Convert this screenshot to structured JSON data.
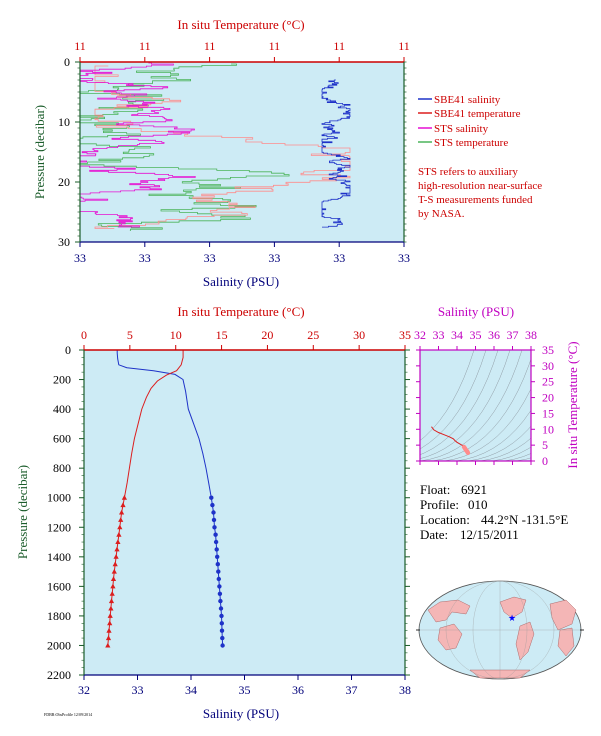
{
  "colors": {
    "plot_bg": "#cdebf5",
    "salinity": "#1e32c8",
    "temperature": "#dc1e1e",
    "sts_salinity": "#e60fd2",
    "sts_temperature": "#4bb45a",
    "sts_temperature_alt": "#ff8c8c",
    "axis_red": "#cc0000",
    "axis_blue": "#00007a",
    "axis_green": "#1a5c2a",
    "axis_magenta": "#c000c0"
  },
  "top_panel": {
    "title": "In situ Temperature (°C)",
    "temp_tick_labels": [
      "11",
      "11",
      "11",
      "11",
      "11",
      "11"
    ],
    "sal_tick_labels": [
      "33",
      "33",
      "33",
      "33",
      "33",
      "33"
    ],
    "xlabel": "Salinity (PSU)",
    "ylabel": "Pressure (decibar)",
    "y_tick_labels": [
      "0",
      "10",
      "20",
      "30"
    ],
    "legend": [
      {
        "label": "SBE41 salinity",
        "color": "#1e32c8"
      },
      {
        "label": "SBE41 temperature",
        "color": "#dc1e1e"
      },
      {
        "label": "STS salinity",
        "color": "#e60fd2"
      },
      {
        "label": "STS temperature",
        "color": "#4bb45a"
      }
    ],
    "note": [
      "STS refers to auxiliary",
      "high-resolution near-surface",
      "T-S measurements funded",
      "by NASA."
    ]
  },
  "main_panel": {
    "title": "In situ Temperature (°C)",
    "xlabel": "Salinity (PSU)",
    "ylabel": "Pressure (decibar)",
    "temp_tick_labels": [
      "0",
      "5",
      "10",
      "15",
      "20",
      "25",
      "30",
      "35"
    ],
    "sal_tick_labels": [
      "32",
      "33",
      "34",
      "35",
      "36",
      "37",
      "38"
    ],
    "y_tick_labels": [
      "0",
      "200",
      "400",
      "600",
      "800",
      "1000",
      "1200",
      "1400",
      "1600",
      "1800",
      "2000",
      "2200"
    ]
  },
  "ts_panel": {
    "title": "Salinity (PSU)",
    "ylabel": "In situ Temperature (°C)",
    "x_tick_labels": [
      "32",
      "33",
      "34",
      "35",
      "36",
      "37",
      "38"
    ],
    "y_tick_labels": [
      "0",
      "5",
      "10",
      "15",
      "20",
      "25",
      "30",
      "35"
    ]
  },
  "info": {
    "float_label": "Float:",
    "float_value": "6921",
    "profile_label": "Profile:",
    "profile_value": "010",
    "location_label": "Location:",
    "location_value": "44.2°N  -131.5°E",
    "date_label": "Date:",
    "date_value": "12/15/2011"
  },
  "footer_text": "FDBR:ObsProfile 12/09/2014",
  "chart_data": [
    {
      "type": "line",
      "panel": "main",
      "series": [
        {
          "name": "Salinity",
          "unit": "PSU",
          "x_range": [
            32,
            38
          ],
          "values": [
            [
              32.62,
              0
            ],
            [
              32.62,
              20
            ],
            [
              32.63,
              60
            ],
            [
              32.65,
              100
            ],
            [
              32.8,
              120
            ],
            [
              33.3,
              140
            ],
            [
              33.7,
              165
            ],
            [
              33.85,
              200
            ],
            [
              33.9,
              280
            ],
            [
              33.95,
              400
            ],
            [
              34.05,
              500
            ],
            [
              34.15,
              600
            ],
            [
              34.22,
              700
            ],
            [
              34.28,
              800
            ],
            [
              34.33,
              900
            ],
            [
              34.38,
              1000
            ]
          ]
        },
        {
          "name": "Temperature",
          "unit": "°C",
          "x_range": [
            0,
            35
          ],
          "values": [
            [
              10.8,
              0
            ],
            [
              10.8,
              50
            ],
            [
              10.6,
              100
            ],
            [
              10.1,
              140
            ],
            [
              9.0,
              170
            ],
            [
              8.0,
              210
            ],
            [
              7.3,
              260
            ],
            [
              6.8,
              320
            ],
            [
              6.3,
              400
            ],
            [
              5.9,
              500
            ],
            [
              5.5,
              600
            ],
            [
              5.2,
              700
            ],
            [
              4.95,
              800
            ],
            [
              4.7,
              900
            ],
            [
              4.4,
              1000
            ]
          ]
        },
        {
          "name": "Salinity (points)",
          "unit": "PSU",
          "values": [
            [
              34.38,
              1000
            ],
            [
              34.4,
              1050
            ],
            [
              34.42,
              1100
            ],
            [
              34.43,
              1150
            ],
            [
              34.44,
              1200
            ],
            [
              34.46,
              1250
            ],
            [
              34.47,
              1300
            ],
            [
              34.48,
              1350
            ],
            [
              34.49,
              1400
            ],
            [
              34.5,
              1450
            ],
            [
              34.51,
              1500
            ],
            [
              34.52,
              1550
            ],
            [
              34.53,
              1600
            ],
            [
              34.54,
              1650
            ],
            [
              34.55,
              1700
            ],
            [
              34.56,
              1750
            ],
            [
              34.57,
              1800
            ],
            [
              34.575,
              1850
            ],
            [
              34.58,
              1900
            ],
            [
              34.585,
              1950
            ],
            [
              34.59,
              2000
            ]
          ]
        },
        {
          "name": "Temperature (points)",
          "unit": "°C",
          "values": [
            [
              4.4,
              1000
            ],
            [
              4.25,
              1050
            ],
            [
              4.1,
              1100
            ],
            [
              4.0,
              1150
            ],
            [
              3.9,
              1200
            ],
            [
              3.8,
              1250
            ],
            [
              3.7,
              1300
            ],
            [
              3.6,
              1350
            ],
            [
              3.5,
              1400
            ],
            [
              3.4,
              1450
            ],
            [
              3.3,
              1500
            ],
            [
              3.22,
              1550
            ],
            [
              3.15,
              1600
            ],
            [
              3.08,
              1650
            ],
            [
              3.0,
              1700
            ],
            [
              2.93,
              1750
            ],
            [
              2.86,
              1800
            ],
            [
              2.8,
              1850
            ],
            [
              2.73,
              1900
            ],
            [
              2.67,
              1950
            ],
            [
              2.6,
              2000
            ]
          ]
        }
      ],
      "ylim": [
        0,
        2200
      ],
      "y_reversed": true
    },
    {
      "type": "line",
      "panel": "ts_diagram",
      "x_range": [
        32,
        38
      ],
      "y_range": [
        0,
        35
      ],
      "series": [
        {
          "name": "T-S curve",
          "values": [
            [
              32.62,
              10.8
            ],
            [
              32.65,
              10.6
            ],
            [
              32.75,
              9.8
            ],
            [
              33.0,
              9.0
            ],
            [
              33.3,
              8.3
            ],
            [
              33.6,
              7.6
            ],
            [
              33.8,
              7.0
            ],
            [
              33.9,
              6.4
            ],
            [
              34.0,
              5.9
            ],
            [
              34.15,
              5.4
            ],
            [
              34.3,
              4.9
            ],
            [
              34.38,
              4.4
            ]
          ]
        },
        {
          "name": "T-S points",
          "values": [
            [
              34.38,
              4.4
            ],
            [
              34.42,
              4.1
            ],
            [
              34.45,
              3.8
            ],
            [
              34.48,
              3.5
            ],
            [
              34.51,
              3.3
            ],
            [
              34.54,
              3.1
            ],
            [
              34.57,
              2.86
            ],
            [
              34.59,
              2.6
            ]
          ]
        }
      ]
    }
  ]
}
